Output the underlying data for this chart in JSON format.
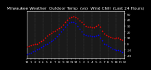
{
  "title": "Milwaukee Weather  Outdoor Temp  (vs)  Wind Chill  (Last 24 Hours)",
  "bg_color": "#000000",
  "plot_bg": "#1a1a1a",
  "fig_bg": "#000000",
  "red_color": "#ff0000",
  "blue_color": "#0000ff",
  "grid_color": "#555555",
  "title_color": "#ffffff",
  "tick_color": "#ffffff",
  "spine_color": "#ffffff",
  "xlim": [
    0,
    24
  ],
  "ylim": [
    -25,
    55
  ],
  "ytick_values": [
    50,
    40,
    30,
    20,
    10,
    0,
    -10,
    -20
  ],
  "ytick_labels": [
    "50",
    "40",
    "30",
    "20",
    "10",
    "0",
    "-10",
    "-20"
  ],
  "xtick_labels": [
    "12",
    "1",
    "2",
    "3",
    "4",
    "5",
    "6",
    "7",
    "8",
    "9",
    "10",
    "11",
    "12",
    "1",
    "2",
    "3",
    "4",
    "5",
    "6",
    "7",
    "8",
    "9",
    "10",
    "11",
    "12"
  ],
  "red_x": [
    0,
    0.5,
    1,
    1.5,
    2,
    2.5,
    3,
    3.5,
    4,
    4.5,
    5,
    5.5,
    6,
    6.5,
    7,
    7.5,
    8,
    8.5,
    9,
    9.5,
    10,
    10.5,
    11,
    11.5,
    12,
    12.5,
    13,
    13.5,
    14,
    14.5,
    15,
    15.5,
    16,
    16.5,
    17,
    17.5,
    18,
    18.5,
    19,
    19.5,
    20,
    20.5,
    21,
    21.5,
    22,
    22.5,
    23,
    23.5
  ],
  "red_y": [
    -5,
    -4,
    -3,
    -2,
    -1,
    0,
    2,
    4,
    7,
    10,
    13,
    16,
    18,
    20,
    22,
    24,
    26,
    28,
    32,
    36,
    40,
    43,
    45,
    46,
    44,
    42,
    39,
    36,
    33,
    30,
    28,
    28,
    27,
    27,
    29,
    32,
    28,
    22,
    17,
    14,
    12,
    11,
    10,
    9,
    10,
    10,
    8,
    6
  ],
  "blue_x": [
    0,
    0.5,
    1,
    1.5,
    2,
    2.5,
    3,
    3.5,
    4,
    4.5,
    5,
    5.5,
    6,
    6.5,
    7,
    7.5,
    8,
    8.5,
    9,
    9.5,
    10,
    10.5,
    11,
    11.5,
    12,
    12.5,
    13,
    13.5,
    14,
    14.5,
    15,
    15.5,
    16,
    16.5,
    17,
    17.5,
    18,
    18.5,
    19,
    19.5,
    20,
    20.5,
    21,
    21.5,
    22,
    22.5,
    23,
    23.5
  ],
  "blue_y": [
    -18,
    -17,
    -15,
    -13,
    -12,
    -10,
    -8,
    -6,
    -4,
    -2,
    0,
    2,
    4,
    6,
    9,
    12,
    16,
    20,
    24,
    28,
    32,
    35,
    36,
    36,
    34,
    30,
    25,
    20,
    16,
    14,
    13,
    13,
    12,
    12,
    13,
    14,
    10,
    5,
    0,
    -2,
    -4,
    -6,
    -8,
    -10,
    -11,
    -11,
    -12,
    -14
  ],
  "vgrid_x": [
    0,
    2,
    4,
    6,
    8,
    10,
    12,
    14,
    16,
    18,
    20,
    22,
    24
  ],
  "title_fontsize": 4.2,
  "tick_fontsize": 3.2,
  "markersize": 1.8
}
